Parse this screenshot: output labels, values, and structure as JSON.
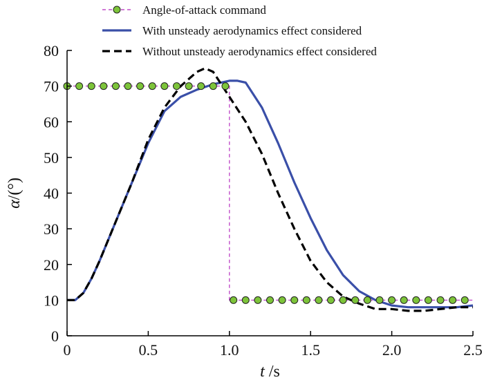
{
  "chart_data": {
    "type": "line",
    "title": "",
    "xlabel": {
      "italic": "t",
      "rest": " /s"
    },
    "ylabel": {
      "italic": "α",
      "rest": "/(°)"
    },
    "xlim": [
      0,
      2.5
    ],
    "ylim": [
      0,
      80
    ],
    "xticks": [
      "0",
      "0.5",
      "1.0",
      "1.5",
      "2.0",
      "2.5"
    ],
    "yticks": [
      "0",
      "10",
      "20",
      "30",
      "40",
      "50",
      "60",
      "70",
      "80"
    ],
    "grid": false,
    "legend_position": "top",
    "colors": {
      "command_line": "#c04cc8",
      "command_marker_fill": "#7dc43a",
      "command_marker_edge": "#222222",
      "with_unsteady": "#3a4fa8",
      "without_unsteady": "#000000"
    },
    "series": [
      {
        "name": "Angle-of-attack command",
        "style": "dashed-with-circle-markers",
        "x": [
          0,
          0.075,
          0.15,
          0.225,
          0.3,
          0.375,
          0.45,
          0.525,
          0.6,
          0.675,
          0.75,
          0.825,
          0.9,
          0.975,
          1.0,
          1.0,
          1.025,
          1.1,
          1.175,
          1.25,
          1.325,
          1.4,
          1.475,
          1.55,
          1.625,
          1.7,
          1.775,
          1.85,
          1.925,
          2.0,
          2.075,
          2.15,
          2.225,
          2.3,
          2.375,
          2.45,
          2.5
        ],
        "y": [
          70,
          70,
          70,
          70,
          70,
          70,
          70,
          70,
          70,
          70,
          70,
          70,
          70,
          70,
          70,
          10,
          10,
          10,
          10,
          10,
          10,
          10,
          10,
          10,
          10,
          10,
          10,
          10,
          10,
          10,
          10,
          10,
          10,
          10,
          10,
          10,
          10
        ],
        "marker_x": [
          0,
          0.075,
          0.15,
          0.225,
          0.3,
          0.375,
          0.45,
          0.525,
          0.6,
          0.675,
          0.75,
          0.825,
          0.9,
          0.975,
          1.025,
          1.1,
          1.175,
          1.25,
          1.325,
          1.4,
          1.475,
          1.55,
          1.625,
          1.7,
          1.775,
          1.85,
          1.925,
          2.0,
          2.075,
          2.15,
          2.225,
          2.3,
          2.375,
          2.45
        ],
        "marker_y": [
          70,
          70,
          70,
          70,
          70,
          70,
          70,
          70,
          70,
          70,
          70,
          70,
          70,
          70,
          10,
          10,
          10,
          10,
          10,
          10,
          10,
          10,
          10,
          10,
          10,
          10,
          10,
          10,
          10,
          10,
          10,
          10,
          10,
          10
        ]
      },
      {
        "name": "With unsteady aerodynamics effect considered",
        "style": "solid",
        "x": [
          0,
          0.05,
          0.1,
          0.15,
          0.2,
          0.3,
          0.4,
          0.5,
          0.6,
          0.7,
          0.8,
          0.9,
          1.0,
          1.05,
          1.1,
          1.2,
          1.3,
          1.4,
          1.5,
          1.6,
          1.7,
          1.8,
          1.9,
          2.0,
          2.1,
          2.2,
          2.3,
          2.4,
          2.5
        ],
        "y": [
          10,
          10,
          12,
          16,
          21,
          32,
          43,
          54,
          63,
          67,
          69,
          70.5,
          71.5,
          71.5,
          71,
          64,
          54,
          43,
          33,
          24,
          17,
          12.5,
          10,
          8.5,
          8,
          8,
          8,
          8,
          8.5
        ]
      },
      {
        "name": "Without unsteady aerodynamics effect considered",
        "style": "dashed",
        "x": [
          0,
          0.05,
          0.1,
          0.15,
          0.2,
          0.3,
          0.4,
          0.5,
          0.6,
          0.7,
          0.8,
          0.85,
          0.9,
          1.0,
          1.1,
          1.2,
          1.3,
          1.4,
          1.5,
          1.6,
          1.7,
          1.8,
          1.9,
          2.0,
          2.1,
          2.2,
          2.3,
          2.4,
          2.5
        ],
        "y": [
          10,
          10,
          12,
          16,
          21,
          32,
          43,
          55,
          64,
          70,
          74,
          75,
          74,
          67,
          60,
          51,
          40,
          30,
          21,
          15,
          11,
          9,
          7.5,
          7.5,
          7,
          7,
          7.5,
          8,
          8
        ]
      }
    ]
  }
}
